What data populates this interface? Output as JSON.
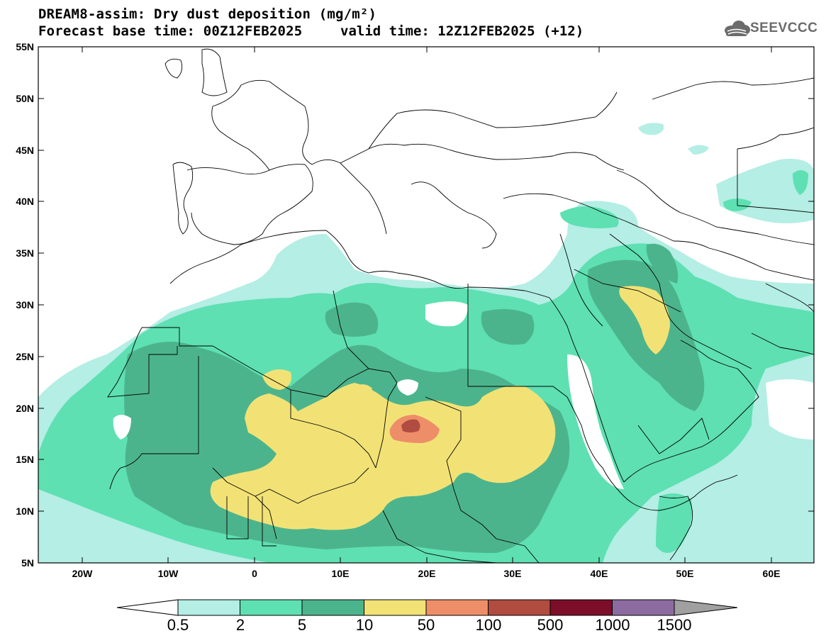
{
  "header": {
    "title_line1": "DREAM8-assim: Dry dust deposition (mg/m²)",
    "title_line2_base": "Forecast base time: 00Z12FEB2025",
    "title_line2_valid": "valid time: 12Z12FEB2025 (+12)"
  },
  "logo": {
    "text": "SEEVCCC",
    "icon": "cloud-logo-icon"
  },
  "axes": {
    "lat_labels": [
      "55N",
      "50N",
      "45N",
      "40N",
      "35N",
      "30N",
      "25N",
      "20N",
      "15N",
      "10N",
      "5N"
    ],
    "lon_labels": [
      "20W",
      "10W",
      "0",
      "10E",
      "20E",
      "30E",
      "40E",
      "50E",
      "60E"
    ],
    "lon_range": [
      -25,
      65
    ],
    "lat_range": [
      5,
      55
    ]
  },
  "colorbar": {
    "labels": [
      "0.5",
      "2",
      "5",
      "10",
      "50",
      "100",
      "500",
      "1000",
      "1500"
    ],
    "colors": [
      "#b4eee4",
      "#5ee0b2",
      "#4cb48c",
      "#f2e276",
      "#ee8e68",
      "#b04c40",
      "#7c0e2a",
      "#8c6ca0"
    ],
    "low_arrow_color": "#ffffff",
    "high_arrow_color": "#a0a0a0"
  },
  "colors": {
    "background": "#ffffff",
    "borders": "#000000"
  }
}
